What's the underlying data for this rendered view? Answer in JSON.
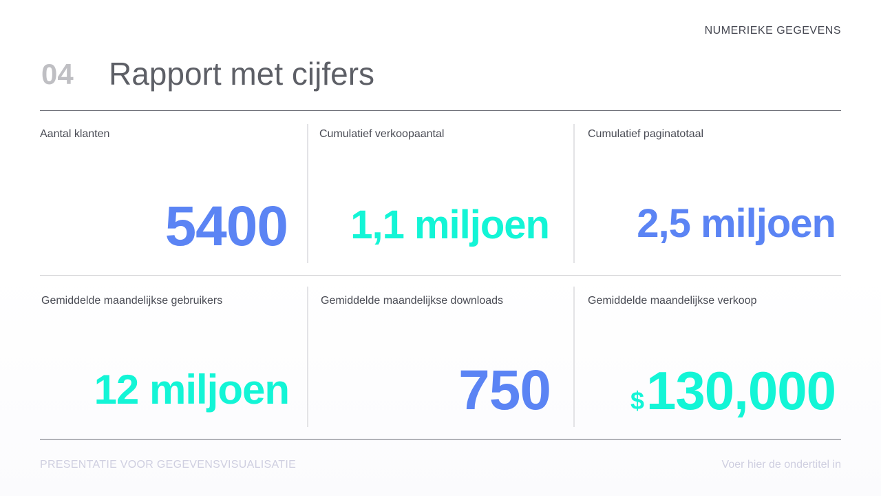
{
  "header": {
    "section_tag": "NUMERIEKE GEGEVENS",
    "number": "04",
    "title": "Rapport met cijfers"
  },
  "stats": [
    {
      "label": "Aantal klanten",
      "value": "5400",
      "color": "#5b84f4"
    },
    {
      "label": "Cumulatief verkoopaantal",
      "value": "1,1 miljoen",
      "color": "#13f5d6"
    },
    {
      "label": "Cumulatief paginatotaal",
      "value": "2,5 miljoen",
      "color": "#5b84f4"
    },
    {
      "label": "Gemiddelde maandelijkse gebruikers",
      "value": "12 miljoen",
      "color": "#13f5d6"
    },
    {
      "label": "Gemiddelde maandelijkse downloads",
      "value": "750",
      "color": "#5b84f4"
    },
    {
      "label": "Gemiddelde maandelijkse verkoop",
      "currency": "$",
      "value": "130,000",
      "color": "#13f5d6"
    }
  ],
  "footer": {
    "left": "PRESENTATIE VOOR GEGEVENSVISUALISATIE",
    "right": "Voer hier de ondertitel in"
  }
}
